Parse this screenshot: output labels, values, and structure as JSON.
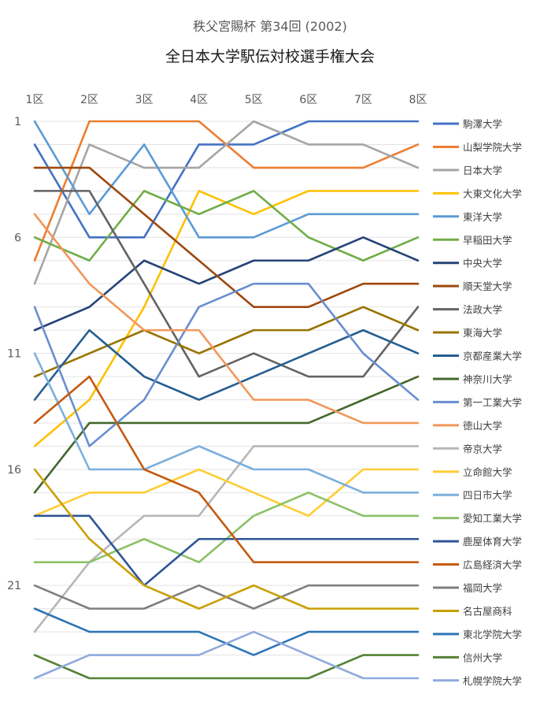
{
  "chart_data": {
    "type": "line",
    "subtitle": "秩父宮賜杯 第34回 (2002)",
    "title": "全日本大学駅伝対校選手権大会",
    "categories": [
      "1区",
      "2区",
      "3区",
      "4区",
      "5区",
      "6区",
      "7区",
      "8区"
    ],
    "y_ticks": [
      1,
      6,
      11,
      16,
      21
    ],
    "ylim": [
      1,
      25
    ],
    "y_inverted": true,
    "grid": true,
    "legend_position": "right",
    "series": [
      {
        "name": "駒澤大学",
        "color": "#4472C4",
        "values": [
          2,
          6,
          6,
          2,
          2,
          1,
          1,
          1
        ]
      },
      {
        "name": "山梨学院大学",
        "color": "#ED7D31",
        "values": [
          7,
          1,
          1,
          1,
          3,
          3,
          3,
          2
        ]
      },
      {
        "name": "日本大学",
        "color": "#A5A5A5",
        "values": [
          8,
          2,
          3,
          3,
          1,
          2,
          2,
          3
        ]
      },
      {
        "name": "大東文化大学",
        "color": "#FFC000",
        "values": [
          15,
          13,
          9,
          4,
          5,
          4,
          4,
          4
        ]
      },
      {
        "name": "東洋大学",
        "color": "#5B9BD5",
        "values": [
          1,
          5,
          2,
          6,
          6,
          5,
          5,
          5
        ]
      },
      {
        "name": "早稲田大学",
        "color": "#70AD47",
        "values": [
          6,
          7,
          4,
          5,
          4,
          6,
          7,
          6
        ]
      },
      {
        "name": "中央大学",
        "color": "#264478",
        "values": [
          10,
          9,
          7,
          8,
          7,
          7,
          6,
          7
        ]
      },
      {
        "name": "順天堂大学",
        "color": "#9E480E",
        "values": [
          3,
          3,
          5,
          7,
          9,
          9,
          8,
          8
        ]
      },
      {
        "name": "法政大学",
        "color": "#636363",
        "values": [
          4,
          4,
          8,
          12,
          11,
          12,
          12,
          9
        ]
      },
      {
        "name": "東海大学",
        "color": "#997300",
        "values": [
          12,
          11,
          10,
          11,
          10,
          10,
          9,
          10
        ]
      },
      {
        "name": "京都産業大学",
        "color": "#255E91",
        "values": [
          13,
          10,
          12,
          13,
          12,
          11,
          10,
          11
        ]
      },
      {
        "name": "神奈川大学",
        "color": "#43682B",
        "values": [
          17,
          14,
          14,
          14,
          14,
          14,
          13,
          12
        ]
      },
      {
        "name": "第一工業大学",
        "color": "#698ED0",
        "values": [
          9,
          15,
          13,
          9,
          8,
          8,
          11,
          13
        ]
      },
      {
        "name": "徳山大学",
        "color": "#F1975A",
        "values": [
          5,
          8,
          10,
          10,
          13,
          13,
          14,
          14
        ]
      },
      {
        "name": "帝京大学",
        "color": "#B7B7B7",
        "values": [
          23,
          20,
          18,
          18,
          15,
          15,
          15,
          15
        ]
      },
      {
        "name": "立命館大学",
        "color": "#FFCD33",
        "values": [
          18,
          17,
          17,
          16,
          17,
          18,
          16,
          16
        ]
      },
      {
        "name": "四日市大学",
        "color": "#7CAFDD",
        "values": [
          11,
          16,
          16,
          15,
          16,
          16,
          17,
          17
        ]
      },
      {
        "name": "愛知工業大学",
        "color": "#8CC168",
        "values": [
          20,
          20,
          19,
          20,
          18,
          17,
          18,
          18
        ]
      },
      {
        "name": "鹿屋体育大学",
        "color": "#2F5597",
        "values": [
          18,
          18,
          21,
          19,
          19,
          19,
          19,
          19
        ]
      },
      {
        "name": "広島経済大学",
        "color": "#C55A11",
        "values": [
          14,
          12,
          16,
          17,
          20,
          20,
          20,
          20
        ]
      },
      {
        "name": "福岡大学",
        "color": "#7F7F7F",
        "values": [
          21,
          22,
          22,
          21,
          22,
          21,
          21,
          21
        ]
      },
      {
        "name": "名古屋商科",
        "color": "#C9A000",
        "values": [
          16,
          19,
          21,
          22,
          21,
          22,
          22,
          22
        ]
      },
      {
        "name": "東北学院大学",
        "color": "#2E75B6",
        "values": [
          22,
          23,
          23,
          23,
          24,
          23,
          23,
          23
        ]
      },
      {
        "name": "信州大学",
        "color": "#548235",
        "values": [
          24,
          25,
          25,
          25,
          25,
          25,
          24,
          24
        ]
      },
      {
        "name": "札幌学院大学",
        "color": "#8FAADC",
        "values": [
          25,
          24,
          24,
          24,
          23,
          24,
          25,
          25
        ]
      }
    ]
  }
}
